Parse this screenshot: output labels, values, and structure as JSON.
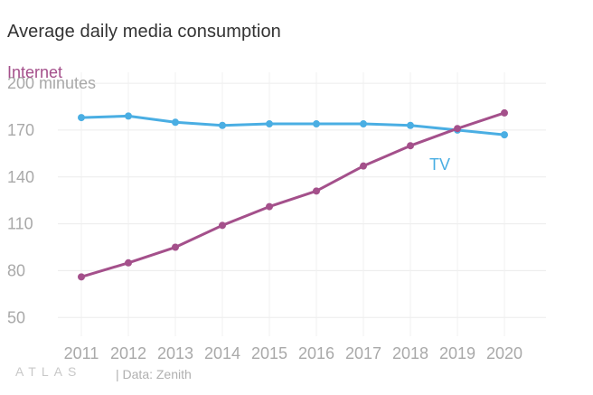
{
  "title": "Average daily media consumption",
  "footer": {
    "logo": "ATLAS",
    "source": "| Data: Zenith"
  },
  "chart_data": {
    "type": "line",
    "title": "Average daily media consumption",
    "ylabel": "minutes",
    "x": [
      "2011",
      "2012",
      "2013",
      "2014",
      "2015",
      "2016",
      "2017",
      "2018",
      "2019",
      "2020"
    ],
    "yticks": [
      50,
      80,
      110,
      140,
      170,
      200
    ],
    "ytick_labels": [
      "50",
      "80",
      "110",
      "140",
      "170",
      "200 minutes"
    ],
    "ylim": [
      38,
      207
    ],
    "grid": true,
    "legend": "direct labels",
    "series": [
      {
        "name": "Internet",
        "color": "#a4508b",
        "values": [
          76,
          85,
          95,
          109,
          121,
          131,
          147,
          160,
          171,
          181
        ]
      },
      {
        "name": "TV",
        "color": "#4aaee3",
        "values": [
          178,
          179,
          175,
          173,
          174,
          174,
          174,
          173,
          170,
          167
        ]
      }
    ]
  }
}
